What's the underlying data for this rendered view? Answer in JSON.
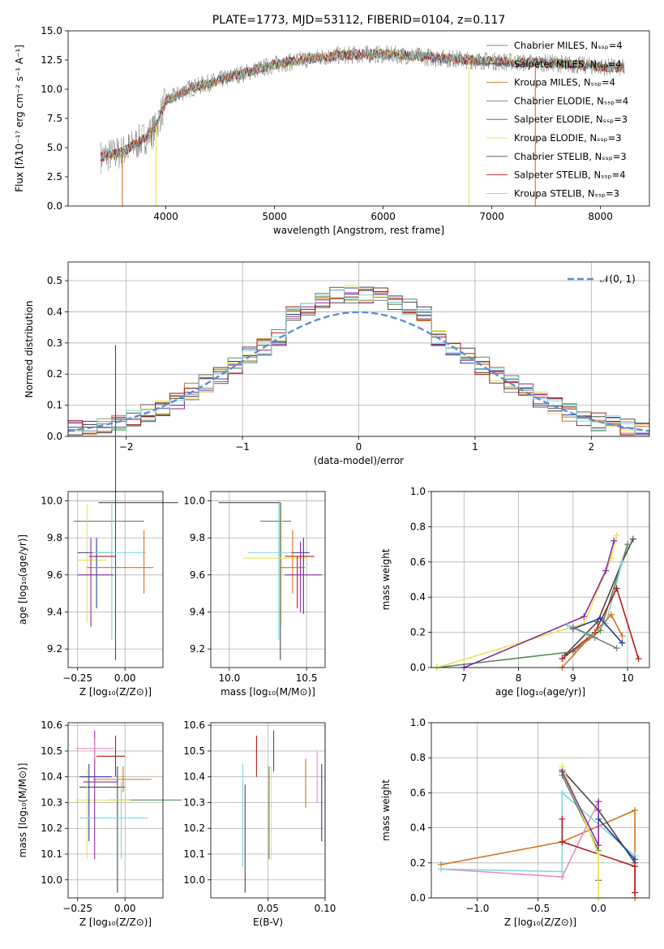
{
  "figure_title": "PLATE=1773, MJD=53112, FIBERID=0104, z=0.117",
  "colors": {
    "Chabrier MILES": "#808080",
    "Salpeter MILES": "#2a3a9a",
    "Kroupa MILES": "#d2741e",
    "Chabrier ELODIE": "#5a8a5a",
    "Salpeter ELODIE": "#8e2ca0",
    "Kroupa ELODIE": "#e8e35a",
    "Chabrier STELIB": "#4a4a4a",
    "Salpeter STELIB": "#b01c1c",
    "Kroupa STELIB": "#7fd8d8",
    "normal": "#5b8fd6"
  },
  "chart_data": [
    {
      "id": "spectrum",
      "type": "line",
      "title": "PLATE=1773, MJD=53112, FIBERID=0104, z=0.117",
      "xlabel": "wavelength [Angstrom, rest frame]",
      "ylabel": "Flux [fλ10⁻¹⁷ erg cm⁻² s⁻¹ A⁻¹]",
      "xlim": [
        3100,
        8450
      ],
      "ylim": [
        0,
        15
      ],
      "xticks": [
        4000,
        5000,
        6000,
        7000,
        8000
      ],
      "yticks": [
        "0.0",
        "2.5",
        "5.0",
        "7.5",
        "10.0",
        "12.5",
        "15.0"
      ],
      "grid": false,
      "legend": "upper right",
      "legend_entries": [
        "Chabrier MILES, Nₛₛₚ=4",
        "Salpeter MILES, Nₛₛₚ=4",
        "Kroupa MILES, Nₛₛₚ=4",
        "Chabrier ELODIE, Nₛₛₚ=4",
        "Salpeter ELODIE, Nₛₛₚ=3",
        "Kroupa ELODIE, Nₛₛₚ=3",
        "Chabrier STELIB, Nₛₛₚ=3",
        "Salpeter STELIB, Nₛₛₚ=4",
        "Kroupa STELIB, Nₛₛₚ=3"
      ],
      "continuum": {
        "x": [
          3400,
          3600,
          3800,
          3900,
          4000,
          4200,
          4500,
          4800,
          5000,
          5300,
          5600,
          5900,
          6200,
          6500,
          6800,
          7000,
          7300,
          7600,
          7900,
          8220
        ],
        "y": [
          4.2,
          4.6,
          5.8,
          6.6,
          9.0,
          10.0,
          10.8,
          11.6,
          12.1,
          12.6,
          12.9,
          13.0,
          12.9,
          12.7,
          12.5,
          12.4,
          12.3,
          12.2,
          12.0,
          11.8
        ]
      }
    },
    {
      "id": "residuals",
      "type": "step",
      "xlabel": "(data-model)/error",
      "ylabel": "Normed distribution",
      "xlim": [
        -2.5,
        2.5
      ],
      "ylim": [
        0,
        0.56
      ],
      "xticks": [
        "−2",
        "−1",
        "0",
        "1",
        "2"
      ],
      "yticks": [
        "0.0",
        "0.1",
        "0.2",
        "0.3",
        "0.4",
        "0.5"
      ],
      "grid": true,
      "legend": "upper right",
      "legend_entries": [
        "𝒩(0, 1)"
      ],
      "normal": {
        "mu": 0,
        "sigma": 1
      }
    },
    {
      "id": "age-vs-Z",
      "type": "errorbar",
      "xlabel": "Z [log₁₀(Z/Z⊙)]",
      "ylabel": "age  [log₁₀(age/yr)]",
      "xlim": [
        -0.3,
        0.2
      ],
      "ylim": [
        9.1,
        10.05
      ],
      "xticks": [
        "−0.25",
        "0.00"
      ],
      "yticks": [
        "9.2",
        "9.4",
        "9.6",
        "9.8",
        "10.0"
      ],
      "grid": true,
      "points": [
        {
          "x": -0.05,
          "y": 9.99,
          "xerr": [
            0.09,
            0.33
          ],
          "yerr": [
            0.85,
            0.85
          ],
          "color": "Chabrier STELIB"
        },
        {
          "x": -0.05,
          "y": 9.89,
          "xerr": [
            0.22,
            0.15
          ],
          "yerr": [
            0.0,
            0.0
          ],
          "color": "Chabrier ELODIE"
        },
        {
          "x": -0.2,
          "y": 9.68,
          "xerr": [
            0.05,
            0.1
          ],
          "yerr": [
            0.34,
            0.3
          ],
          "color": "Kroupa ELODIE"
        },
        {
          "x": -0.15,
          "y": 9.72,
          "xerr": [
            0.1,
            0.08
          ],
          "yerr": [
            0.3,
            0.08
          ],
          "color": "Salpeter MILES"
        },
        {
          "x": -0.07,
          "y": 9.72,
          "xerr": [
            0.1,
            0.18
          ],
          "yerr": [
            0.47,
            0.28
          ],
          "color": "Kroupa STELIB"
        },
        {
          "x": -0.14,
          "y": 9.7,
          "xerr": [
            0.05,
            0.09
          ],
          "yerr": [
            0.0,
            0.0
          ],
          "color": "Salpeter STELIB"
        },
        {
          "x": 0.1,
          "y": 9.64,
          "xerr": [
            0.3,
            0.05
          ],
          "yerr": [
            0.14,
            0.2
          ],
          "color": "Kroupa MILES"
        },
        {
          "x": -0.18,
          "y": 9.6,
          "xerr": [
            0.07,
            0.12
          ],
          "yerr": [
            0.28,
            0.2
          ],
          "color": "Salpeter ELODIE"
        }
      ]
    },
    {
      "id": "age-vs-mass",
      "type": "errorbar",
      "xlabel": "mass [log₁₀(M/M⊙)]",
      "xlim": [
        9.88,
        10.62
      ],
      "ylim": [
        9.1,
        10.05
      ],
      "xticks": [
        "10.0",
        "10.5"
      ],
      "yticks": [
        "9.2",
        "9.4",
        "9.6",
        "9.8",
        "10.0"
      ],
      "grid": true,
      "points": [
        {
          "x": 10.33,
          "y": 9.99,
          "xerr": [
            0.4,
            0.0
          ],
          "yerr": [
            0.85,
            0.0
          ],
          "color": "Chabrier STELIB"
        },
        {
          "x": 10.32,
          "y": 9.89,
          "xerr": [
            0.12,
            0.08
          ],
          "yerr": [
            0.0,
            0.0
          ],
          "color": "Chabrier ELODIE"
        },
        {
          "x": 10.34,
          "y": 9.69,
          "xerr": [
            0.25,
            0.17
          ],
          "yerr": [
            0.36,
            0.3
          ],
          "color": "Kroupa ELODIE"
        },
        {
          "x": 10.48,
          "y": 9.72,
          "xerr": [
            0.08,
            0.04
          ],
          "yerr": [
            0.33,
            0.08
          ],
          "color": "Salpeter MILES"
        },
        {
          "x": 10.32,
          "y": 9.72,
          "xerr": [
            0.2,
            0.08
          ],
          "yerr": [
            0.47,
            0.28
          ],
          "color": "Kroupa STELIB"
        },
        {
          "x": 10.44,
          "y": 9.7,
          "xerr": [
            0.08,
            0.11
          ],
          "yerr": [
            0.28,
            0.0
          ],
          "color": "Salpeter STELIB"
        },
        {
          "x": 10.41,
          "y": 9.64,
          "xerr": [
            0.08,
            0.08
          ],
          "yerr": [
            0.14,
            0.2
          ],
          "color": "Kroupa MILES"
        },
        {
          "x": 10.46,
          "y": 9.6,
          "xerr": [
            0.1,
            0.14
          ],
          "yerr": [
            0.2,
            0.18
          ],
          "color": "Salpeter ELODIE"
        }
      ]
    },
    {
      "id": "weight-vs-age",
      "type": "line",
      "xlabel": "age  [log₁₀(age/yr)]",
      "ylabel": "mass weight",
      "xlim": [
        6.4,
        10.4
      ],
      "ylim": [
        0,
        1.0
      ],
      "xticks": [
        "7",
        "8",
        "9",
        "10"
      ],
      "yticks": [
        "0.0",
        "0.2",
        "0.4",
        "0.6",
        "0.8",
        "1.0"
      ],
      "grid": true,
      "series": [
        {
          "color": "Chabrier STELIB",
          "x": [
            8.85,
            9.45,
            9.9,
            10.1
          ],
          "y": [
            0.07,
            0.26,
            0.6,
            0.73
          ]
        },
        {
          "color": "Chabrier ELODIE",
          "x": [
            6.5,
            9.0,
            9.5,
            10.0
          ],
          "y": [
            0.0,
            0.09,
            0.21,
            0.7
          ]
        },
        {
          "color": "Kroupa ELODIE",
          "x": [
            6.5,
            9.2,
            9.7,
            9.8
          ],
          "y": [
            0.0,
            0.25,
            0.62,
            0.75
          ]
        },
        {
          "color": "Salpeter ELODIE",
          "x": [
            7.0,
            9.2,
            9.6,
            9.75
          ],
          "y": [
            0.0,
            0.29,
            0.55,
            0.72
          ]
        },
        {
          "color": "Kroupa STELIB",
          "x": [
            8.9,
            9.3,
            9.6,
            9.9
          ],
          "y": [
            0.24,
            0.18,
            0.25,
            0.6
          ]
        },
        {
          "color": "Salpeter STELIB",
          "x": [
            8.8,
            9.4,
            9.8,
            10.2
          ],
          "y": [
            0.05,
            0.2,
            0.45,
            0.05
          ]
        },
        {
          "color": "Kroupa MILES",
          "x": [
            8.8,
            9.3,
            9.7,
            9.9
          ],
          "y": [
            0.0,
            0.17,
            0.3,
            0.18
          ]
        },
        {
          "color": "Salpeter MILES",
          "x": [
            9.0,
            9.5,
            9.9
          ],
          "y": [
            0.22,
            0.28,
            0.14
          ]
        },
        {
          "color": "Chabrier MILES",
          "x": [
            9.0,
            9.4,
            9.8
          ],
          "y": [
            0.23,
            0.17,
            0.11
          ]
        }
      ]
    },
    {
      "id": "mass-vs-Z",
      "type": "errorbar",
      "xlabel": "Z [log₁₀(Z/Z⊙)]",
      "ylabel": "mass [log₁₀(M/M⊙)]",
      "xlim": [
        -0.3,
        0.2
      ],
      "ylim": [
        9.93,
        10.61
      ],
      "xticks": [
        "−0.25",
        "0.00"
      ],
      "yticks": [
        "10.0",
        "10.1",
        "10.2",
        "10.3",
        "10.4",
        "10.5",
        "10.6"
      ],
      "grid": true,
      "points": [
        {
          "x": -0.04,
          "y": 10.36,
          "xerr": [
            0.2,
            0.04
          ],
          "yerr": [
            0.41,
            0.08
          ],
          "color": "Chabrier STELIB"
        },
        {
          "x": -0.03,
          "y": 10.31,
          "xerr": [
            0.05,
            0.33
          ],
          "yerr": [
            0.0,
            0.0
          ],
          "color": "Chabrier ELODIE"
        },
        {
          "x": -0.2,
          "y": 10.31,
          "xerr": [
            0.06,
            0.23
          ],
          "yerr": [
            0.23,
            0.12
          ],
          "color": "Kroupa ELODIE"
        },
        {
          "x": -0.19,
          "y": 10.4,
          "xerr": [
            0.05,
            0.12
          ],
          "yerr": [
            0.25,
            0.05
          ],
          "color": "Salpeter MILES"
        },
        {
          "x": -0.02,
          "y": 10.24,
          "xerr": [
            0.22,
            0.14
          ],
          "yerr": [
            0.16,
            0.14
          ],
          "color": "Kroupa STELIB"
        },
        {
          "x": -0.05,
          "y": 10.48,
          "xerr": [
            0.1,
            0.05
          ],
          "yerr": [
            0.08,
            0.08
          ],
          "color": "Salpeter STELIB"
        },
        {
          "x": -0.01,
          "y": 10.39,
          "xerr": [
            0.16,
            0.15
          ],
          "yerr": [
            0.05,
            0.05
          ],
          "color": "Kroupa MILES"
        },
        {
          "x": -0.16,
          "y": 10.38,
          "xerr": [
            0.06,
            0.12
          ],
          "yerr": [
            0.3,
            0.2
          ],
          "color": "Salpeter ELODIE"
        },
        {
          "x": -0.16,
          "y": 10.51,
          "xerr": [
            0.1,
            0.1
          ],
          "yerr": [
            0.04,
            0.04
          ],
          "color": "pink"
        }
      ]
    },
    {
      "id": "mass-vs-EBV",
      "type": "errorbar",
      "xlabel": "E(B-V)",
      "xlim": [
        0.0,
        0.1
      ],
      "ylim": [
        9.93,
        10.61
      ],
      "xticks": [
        "0.05",
        "0.10"
      ],
      "yticks": [
        "10.0",
        "10.1",
        "10.2",
        "10.3",
        "10.4",
        "10.5",
        "10.6"
      ],
      "grid": true,
      "points": [
        {
          "x": 0.03,
          "y": 10.2,
          "xerr": [
            0,
            0
          ],
          "yerr": [
            0.25,
            0.17
          ],
          "color": "Chabrier STELIB"
        },
        {
          "x": 0.028,
          "y": 10.25,
          "xerr": [
            0,
            0
          ],
          "yerr": [
            0.2,
            0.2
          ],
          "color": "Kroupa STELIB"
        },
        {
          "x": 0.04,
          "y": 10.48,
          "xerr": [
            0,
            0
          ],
          "yerr": [
            0.08,
            0.08
          ],
          "color": "Salpeter STELIB"
        },
        {
          "x": 0.051,
          "y": 10.26,
          "xerr": [
            0,
            0
          ],
          "yerr": [
            0.18,
            0.18
          ],
          "color": "Chabrier ELODIE"
        },
        {
          "x": 0.053,
          "y": 10.3,
          "xerr": [
            0,
            0
          ],
          "yerr": [
            0.22,
            0.14
          ],
          "color": "Kroupa ELODIE"
        },
        {
          "x": 0.055,
          "y": 10.5,
          "xerr": [
            0,
            0
          ],
          "yerr": [
            0.08,
            0.08
          ],
          "color": "Salpeter ELODIE"
        },
        {
          "x": 0.083,
          "y": 10.37,
          "xerr": [
            0,
            0
          ],
          "yerr": [
            0.09,
            0.1
          ],
          "color": "Kroupa MILES"
        },
        {
          "x": 0.093,
          "y": 10.45,
          "xerr": [
            0,
            0
          ],
          "yerr": [
            0.15,
            0.05
          ],
          "color": "pink"
        },
        {
          "x": 0.097,
          "y": 10.3,
          "xerr": [
            0,
            0
          ],
          "yerr": [
            0.15,
            0.15
          ],
          "color": "Salpeter MILES"
        }
      ]
    },
    {
      "id": "weight-vs-Z",
      "type": "line",
      "xlabel": "Z [log₁₀(Z/Z⊙)]",
      "ylabel": "mass weight",
      "xlim": [
        -1.38,
        0.42
      ],
      "ylim": [
        0,
        1.0
      ],
      "xticks": [
        "−1.0",
        "−0.5",
        "0.0"
      ],
      "yticks": [
        "0.0",
        "0.2",
        "0.4",
        "0.6",
        "0.8",
        "1.0"
      ],
      "grid": true,
      "series": [
        {
          "color": "Kroupa MILES",
          "x": [
            -1.3,
            -0.3,
            0.3,
            0.3
          ],
          "y": [
            0.19,
            0.32,
            0.5,
            0.0
          ]
        },
        {
          "color": "pink",
          "x": [
            -1.3,
            -0.3,
            0.0
          ],
          "y": [
            0.165,
            0.12,
            0.55
          ]
        },
        {
          "color": "Kroupa STELIB",
          "x": [
            -1.3,
            -0.3,
            -0.3,
            0.3
          ],
          "y": [
            0.165,
            0.15,
            0.6,
            0.24
          ]
        },
        {
          "color": "Salpeter STELIB",
          "x": [
            -0.3,
            -0.3,
            0.3,
            0.3
          ],
          "y": [
            0.45,
            0.32,
            0.18,
            0.03
          ]
        },
        {
          "color": "Chabrier STELIB",
          "x": [
            -0.3,
            0.0,
            0.3
          ],
          "y": [
            0.73,
            0.5,
            0.2
          ]
        },
        {
          "color": "Chabrier ELODIE",
          "x": [
            -0.3,
            0.0,
            0.0
          ],
          "y": [
            0.7,
            0.27,
            0.1
          ]
        },
        {
          "color": "Kroupa ELODIE",
          "x": [
            -0.3,
            0.0,
            0.0
          ],
          "y": [
            0.75,
            0.25,
            0.0
          ]
        },
        {
          "color": "Salpeter ELODIE",
          "x": [
            -0.3,
            0.0,
            0.0
          ],
          "y": [
            0.72,
            0.3,
            0.55
          ]
        },
        {
          "color": "Salpeter MILES",
          "x": [
            0.0,
            0.3
          ],
          "y": [
            0.45,
            0.22
          ]
        }
      ]
    }
  ]
}
